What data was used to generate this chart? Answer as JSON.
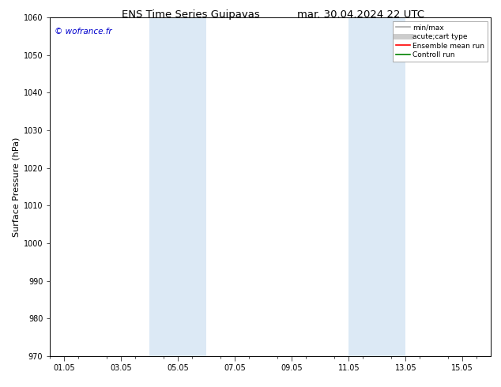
{
  "title_left": "ENS Time Series Guipavas",
  "title_right": "mar. 30.04.2024 22 UTC",
  "ylabel": "Surface Pressure (hPa)",
  "ylim": [
    970,
    1060
  ],
  "yticks": [
    970,
    980,
    990,
    1000,
    1010,
    1020,
    1030,
    1040,
    1050,
    1060
  ],
  "xtick_labels": [
    "01.05",
    "03.05",
    "05.05",
    "07.05",
    "09.05",
    "11.05",
    "13.05",
    "15.05"
  ],
  "xtick_positions": [
    1,
    3,
    5,
    7,
    9,
    11,
    13,
    15
  ],
  "xlim": [
    0.5,
    16
  ],
  "shaded_regions": [
    {
      "xmin": 4.0,
      "xmax": 6.0
    },
    {
      "xmin": 11.0,
      "xmax": 13.0
    }
  ],
  "shade_color": "#dce9f5",
  "watermark": "© wofrance.fr",
  "watermark_color": "#0000cc",
  "legend_entries": [
    {
      "label": "min/max",
      "color": "#aaaaaa",
      "lw": 1.2
    },
    {
      "label": "acute;cart type",
      "color": "#cccccc",
      "lw": 5
    },
    {
      "label": "Ensemble mean run",
      "color": "#ff0000",
      "lw": 1.2
    },
    {
      "label": "Controll run",
      "color": "#008000",
      "lw": 1.2
    }
  ],
  "background_color": "#ffffff",
  "title_fontsize": 9.5,
  "label_fontsize": 8,
  "tick_fontsize": 7,
  "watermark_fontsize": 7.5,
  "legend_fontsize": 6.5
}
